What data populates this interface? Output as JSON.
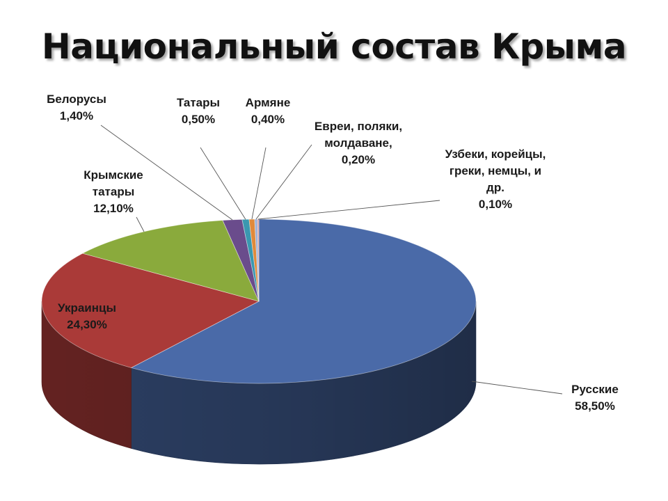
{
  "chart_data": {
    "type": "pie",
    "title": "Национальный состав Крыма",
    "slices": [
      {
        "name": "Русские",
        "value": 58.5,
        "label": "58,50%",
        "color": "#4a6aa8"
      },
      {
        "name": "Украинцы",
        "value": 24.3,
        "label": "24,30%",
        "color": "#aa3a38"
      },
      {
        "name": "Крымские татары",
        "value": 12.1,
        "label": "12,10%",
        "color": "#8aaa3c"
      },
      {
        "name": "Белорусы",
        "value": 1.4,
        "label": "1,40%",
        "color": "#6a4c8c"
      },
      {
        "name": "Татары",
        "value": 0.5,
        "label": "0,50%",
        "color": "#3a98b0"
      },
      {
        "name": "Армяне",
        "value": 0.4,
        "label": "0,40%",
        "color": "#e08a3a"
      },
      {
        "name": "Евреи, поляки, молдаване,",
        "value": 0.2,
        "label": "0,20%",
        "color": "#9ab0d8"
      },
      {
        "name": "Узбеки, корейцы, греки, немцы, и др.",
        "value": 0.1,
        "label": "0,10%",
        "color": "#d89a98"
      }
    ]
  }
}
